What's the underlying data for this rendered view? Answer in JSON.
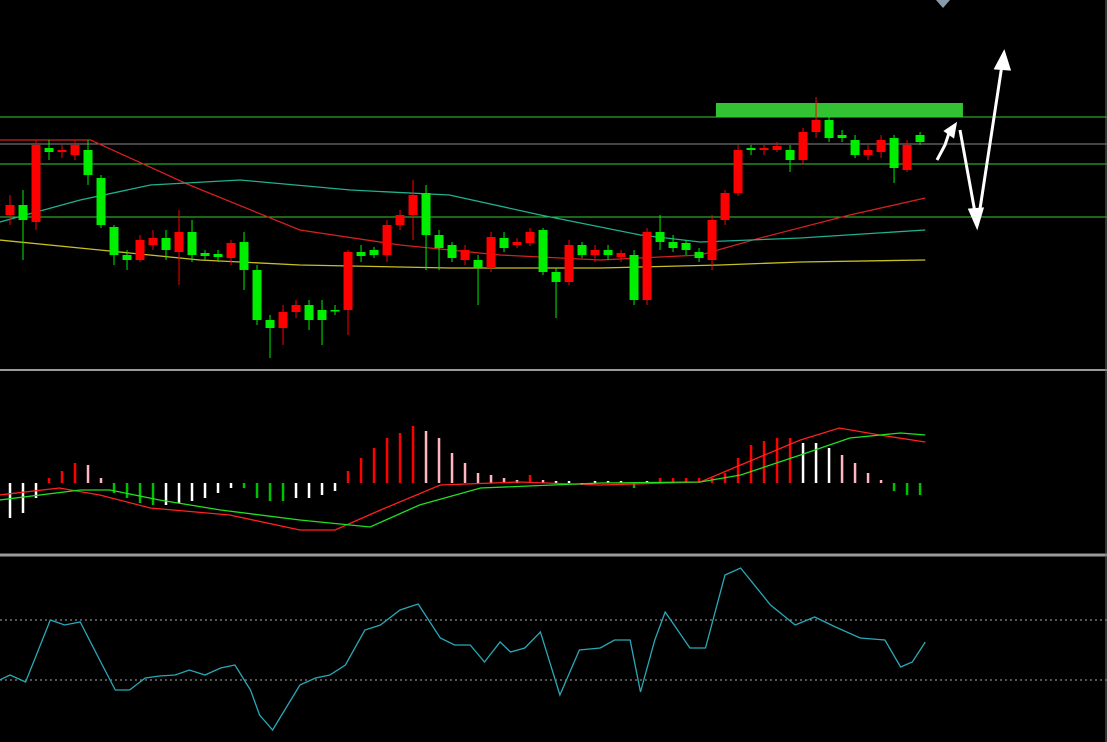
{
  "chart_data": [
    {
      "type": "candlestick",
      "xlim": [
        -0.77,
        84.38
      ],
      "ylim": [
        0,
        370
      ],
      "up_color": "#ff0000",
      "down_color": "#00ee00",
      "x": [
        0,
        1,
        2,
        3,
        4,
        5,
        6,
        7,
        8,
        9,
        10,
        11,
        12,
        13,
        14,
        15,
        16,
        17,
        18,
        19,
        20,
        21,
        22,
        23,
        24,
        25,
        26,
        27,
        28,
        29,
        30,
        31,
        32,
        33,
        34,
        35,
        36,
        37,
        38,
        39,
        40,
        41,
        42,
        43,
        44,
        45,
        46,
        47,
        48,
        49,
        50,
        51,
        52,
        53,
        54,
        55,
        56,
        57,
        58,
        59,
        60,
        61,
        62,
        63,
        64,
        65,
        66,
        67,
        68,
        69,
        70
      ],
      "open": [
        155,
        165,
        148,
        222,
        218,
        215,
        220,
        192,
        143,
        115,
        110,
        125,
        132,
        118,
        138,
        117,
        116,
        112,
        128,
        100,
        50,
        42,
        58,
        65,
        60,
        60,
        60,
        118,
        120,
        115,
        145,
        155,
        177,
        135,
        125,
        110,
        110,
        102,
        132,
        125,
        127,
        140,
        98,
        88,
        125,
        115,
        120,
        113,
        115,
        70,
        138,
        128,
        127,
        118,
        110,
        150,
        177,
        222,
        220,
        220,
        220,
        210,
        238,
        250,
        235,
        230,
        215,
        218,
        232,
        200,
        235
      ],
      "high": [
        175,
        180,
        230,
        230,
        225,
        230,
        230,
        195,
        145,
        120,
        135,
        140,
        140,
        160,
        150,
        120,
        120,
        130,
        138,
        105,
        55,
        65,
        70,
        70,
        70,
        65,
        120,
        125,
        123,
        150,
        160,
        190,
        185,
        140,
        128,
        125,
        115,
        138,
        138,
        132,
        142,
        142,
        102,
        130,
        128,
        125,
        125,
        120,
        120,
        142,
        155,
        135,
        130,
        122,
        155,
        180,
        225,
        225,
        225,
        228,
        225,
        242,
        273,
        255,
        240,
        235,
        225,
        235,
        235,
        230,
        238
      ],
      "low": [
        145,
        110,
        140,
        210,
        212,
        210,
        185,
        142,
        105,
        100,
        108,
        120,
        110,
        85,
        108,
        110,
        108,
        105,
        80,
        45,
        12,
        25,
        52,
        40,
        25,
        55,
        35,
        108,
        112,
        108,
        140,
        130,
        100,
        100,
        108,
        105,
        65,
        98,
        118,
        122,
        124,
        95,
        52,
        85,
        112,
        108,
        110,
        108,
        65,
        65,
        120,
        118,
        115,
        108,
        100,
        145,
        174,
        215,
        215,
        218,
        198,
        205,
        232,
        228,
        228,
        212,
        210,
        212,
        187,
        198,
        225
      ],
      "close": [
        165,
        150,
        225,
        218,
        220,
        225,
        195,
        145,
        115,
        110,
        130,
        132,
        120,
        138,
        115,
        114,
        113,
        127,
        100,
        50,
        42,
        58,
        65,
        50,
        50,
        59,
        118,
        114,
        115,
        145,
        155,
        175,
        135,
        122,
        112,
        120,
        102,
        133,
        122,
        128,
        138,
        98,
        88,
        125,
        115,
        120,
        115,
        117,
        70,
        138,
        128,
        122,
        120,
        112,
        150,
        177,
        220,
        220,
        222,
        224,
        210,
        238,
        250,
        232,
        232,
        215,
        220,
        230,
        202,
        225,
        228
      ],
      "lines": [
        {
          "color": "#d42020",
          "x": [
            -0.8,
            6.2,
            13.8,
            22.3,
            30,
            37.7,
            45.4,
            53.1,
            57.7,
            64.6,
            70.4
          ],
          "values": [
            230,
            230,
            185,
            140,
            125,
            115,
            110,
            115,
            132,
            155,
            172
          ]
        },
        {
          "color": "#20b090",
          "x": [
            -0.8,
            5.4,
            10.8,
            17.7,
            26.2,
            33.8,
            40.8,
            48.5,
            53.1,
            60.8,
            70.4
          ],
          "values": [
            148,
            170,
            185,
            190,
            180,
            175,
            155,
            135,
            128,
            132,
            140
          ]
        },
        {
          "color": "#c8c020",
          "x": [
            -0.8,
            6.9,
            14.6,
            22.3,
            33.8,
            45.4,
            54.6,
            60.8,
            70.4
          ],
          "values": [
            130,
            120,
            110,
            105,
            102,
            102,
            105,
            108,
            110
          ]
        }
      ],
      "levels": [
        {
          "value": 253,
          "color": "#33cc33"
        },
        {
          "value": 226,
          "color": "#888888"
        },
        {
          "value": 206,
          "color": "#33cc33"
        },
        {
          "value": 153,
          "color": "#33cc33"
        }
      ],
      "zone": {
        "x": [
          54.3,
          73.3
        ],
        "y": [
          253,
          267
        ],
        "color": "#33c233"
      }
    },
    {
      "type": "macd",
      "xlim": [
        -0.77,
        84.38
      ],
      "ylim": [
        -72,
        113
      ],
      "x": [
        0,
        1,
        2,
        3,
        4,
        5,
        6,
        7,
        8,
        9,
        10,
        11,
        12,
        13,
        14,
        15,
        16,
        17,
        18,
        19,
        20,
        21,
        22,
        23,
        24,
        25,
        26,
        27,
        28,
        29,
        30,
        31,
        32,
        33,
        34,
        35,
        36,
        37,
        38,
        39,
        40,
        41,
        42,
        43,
        44,
        45,
        46,
        47,
        48,
        49,
        50,
        51,
        52,
        53,
        54,
        55,
        56,
        57,
        58,
        59,
        60,
        61,
        62,
        63,
        64,
        65,
        66,
        67,
        68,
        69,
        70
      ],
      "values": [
        -35,
        -30,
        -15,
        5,
        12,
        20,
        18,
        5,
        -10,
        -15,
        -20,
        -22,
        -22,
        -20,
        -18,
        -15,
        -10,
        -5,
        -5,
        -15,
        -18,
        -18,
        -15,
        -15,
        -12,
        -8,
        12,
        25,
        35,
        45,
        50,
        57,
        52,
        45,
        30,
        20,
        10,
        8,
        5,
        3,
        8,
        3,
        2,
        2,
        -2,
        2,
        2,
        2,
        -5,
        2,
        5,
        5,
        5,
        5,
        5,
        10,
        25,
        38,
        42,
        45,
        45,
        40,
        40,
        35,
        28,
        20,
        10,
        3,
        -8,
        -12,
        -12
      ],
      "colors": [
        "#ffffff",
        "#ffffff",
        "#ffffff",
        "#ff0000",
        "#ff0000",
        "#ff0000",
        "#ffb6c1",
        "#ffb6c1",
        "#00c000",
        "#00c000",
        "#00c000",
        "#00c000",
        "#ffffff",
        "#ffffff",
        "#ffffff",
        "#ffffff",
        "#ffffff",
        "#ffffff",
        "#00c000",
        "#00c000",
        "#00c000",
        "#00c000",
        "#ffffff",
        "#ffffff",
        "#ffffff",
        "#ffffff",
        "#ff0000",
        "#ff0000",
        "#ff0000",
        "#ff0000",
        "#ff0000",
        "#ff0000",
        "#ffb6c1",
        "#ffb6c1",
        "#ffb6c1",
        "#ffb6c1",
        "#ffb6c1",
        "#ffb6c1",
        "#ffb6c1",
        "#ffb6c1",
        "#ff0000",
        "#ffb6c1",
        "#ffffff",
        "#ffffff",
        "#ffffff",
        "#ffffff",
        "#ffffff",
        "#ffffff",
        "#00c000",
        "#ffffff",
        "#ff0000",
        "#ff0000",
        "#ff0000",
        "#ff0000",
        "#ff0000",
        "#ff0000",
        "#ff0000",
        "#ff0000",
        "#ff0000",
        "#ff0000",
        "#ff0000",
        "#ffffff",
        "#ffffff",
        "#ffffff",
        "#ffb6c1",
        "#ffb6c1",
        "#ffb6c1",
        "#ffb6c1",
        "#00c000",
        "#00c000",
        "#00c000"
      ],
      "lines": [
        {
          "color": "#ff2020",
          "x": [
            -0.8,
            3.8,
            6.9,
            10.8,
            16.9,
            22.3,
            25,
            28.5,
            33.1,
            39.2,
            45.4,
            53.1,
            56.2,
            60.8,
            63.8,
            66.9,
            70.4
          ],
          "values": [
            -12,
            -5,
            -12,
            -25,
            -32,
            -47,
            -47,
            -27,
            -2,
            1,
            -2,
            1,
            18,
            43,
            55,
            48,
            41
          ]
        },
        {
          "color": "#20e020",
          "x": [
            -0.8,
            5.4,
            7.7,
            11.5,
            16.2,
            22.3,
            27.7,
            31.5,
            36.2,
            45.4,
            53.1,
            56.2,
            60.8,
            64.6,
            68.5,
            70.4
          ],
          "values": [
            -17,
            -7,
            -7,
            -17,
            -27,
            -37,
            -44,
            -22,
            -5,
            0,
            1,
            8,
            28,
            45,
            50,
            48
          ]
        }
      ]
    },
    {
      "type": "line",
      "xlim": [
        -0.77,
        84.38
      ],
      "ylim": [
        0,
        187
      ],
      "color": "#2aa8b8",
      "x": [
        -0.8,
        0,
        1.2,
        3.1,
        4.2,
        5.4,
        6.9,
        8.1,
        9.2,
        10.4,
        11.5,
        12.7,
        13.8,
        15,
        16.2,
        17.3,
        18.5,
        19.2,
        20.2,
        22.3,
        23.5,
        24.6,
        25.8,
        27.3,
        28.5,
        30,
        31.4,
        33.1,
        34.2,
        35.4,
        36.5,
        37.7,
        38.5,
        39.6,
        40.8,
        42.3,
        43.8,
        45.4,
        46.5,
        47.7,
        48.5,
        49.6,
        50.4,
        52.3,
        53.5,
        55,
        56.2,
        58.5,
        60.4,
        61.9,
        63.5,
        65.4,
        67.3,
        68.5,
        69.4,
        70.4
      ],
      "values": [
        62,
        67,
        60,
        122,
        117,
        120,
        82,
        52,
        52,
        64,
        66,
        67,
        72,
        67,
        74,
        77,
        52,
        27,
        12,
        57,
        64,
        67,
        77,
        112,
        117,
        132,
        138,
        104,
        97,
        97,
        80,
        100,
        90,
        94,
        110,
        47,
        92,
        94,
        102,
        102,
        50,
        102,
        130,
        94,
        94,
        167,
        174,
        137,
        117,
        125,
        115,
        104,
        102,
        75,
        80,
        100
      ],
      "levels": [
        122,
        62
      ]
    }
  ]
}
